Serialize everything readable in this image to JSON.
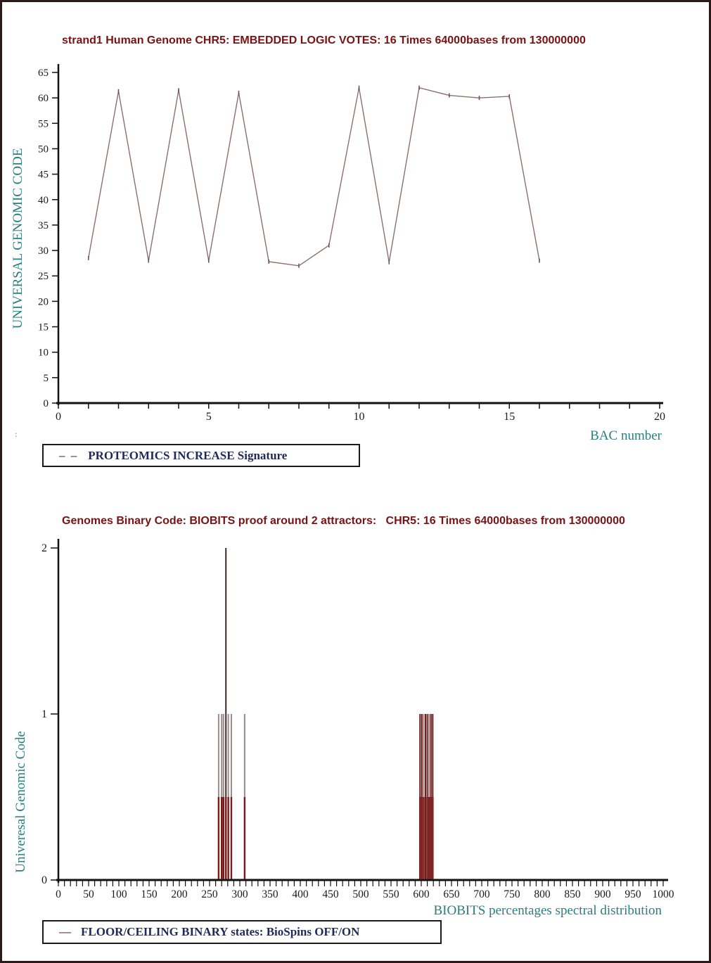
{
  "page": {
    "border_color": "#2a1a1a",
    "background": "#ffffff"
  },
  "colors": {
    "title": "#7a1214",
    "axis": "#111111",
    "tick_text": "#1a1a1a",
    "teal_label": "#2b7d7e",
    "legend_text": "#1f2a5a"
  },
  "artifacts": {
    "left_margin_mark": ":"
  },
  "chart_data": [
    {
      "type": "line",
      "title": "strand1 Human Genome CHR5: EMBEDDED LOGIC VOTES: 16 Times 64000bases from 130000000",
      "xlabel": "BAC number",
      "ylabel": "UNIVERSAL GENOMIC CODE",
      "xlim": [
        0,
        20
      ],
      "ylim": [
        0,
        65
      ],
      "x_major_ticks": [
        0,
        5,
        10,
        15,
        20
      ],
      "x_minor_step": 1,
      "y_major_step": 5,
      "grid": false,
      "legend_position": "below-left",
      "x": [
        1,
        2,
        3,
        4,
        5,
        6,
        7,
        8,
        9,
        10,
        11,
        12,
        13,
        14,
        15,
        16
      ],
      "y": [
        28.5,
        61.3,
        28,
        61.5,
        28,
        61,
        27.8,
        27,
        31,
        62,
        27.7,
        62,
        60.5,
        60,
        60.3,
        28
      ],
      "line_color": "#8a7070",
      "marker_color": "#6e5252",
      "legend_label": "PROTEOMICS INCREASE Signature",
      "legend_sample": "– –"
    },
    {
      "type": "bar",
      "title": "Genomes Binary Code: BIOBITS proof around 2 attractors:   CHR5: 16 Times 64000bases from 130000000",
      "xlabel": "BIOBITS percentages spectral distribution",
      "ylabel": "Univeresal Genomic Code",
      "xlim": [
        0,
        1000
      ],
      "ylim": [
        0,
        2
      ],
      "x_label_step": 50,
      "x_minor_step": 10,
      "y_ticks": [
        0,
        1,
        2
      ],
      "grid": false,
      "legend_position": "below-left",
      "floor_level": 0.5,
      "floor_color": "#7a1b1b",
      "spike_colors": {
        "mauve": "#9c8a8a",
        "dark": "#3f2b2b",
        "darkred": "#6e1a1a"
      },
      "spikes": [
        {
          "x": 265,
          "h": 1,
          "top": "mauve"
        },
        {
          "x": 270,
          "h": 1,
          "top": "mauve"
        },
        {
          "x": 273,
          "h": 1,
          "top": "mauve"
        },
        {
          "x": 277,
          "h": 2,
          "top": "dark"
        },
        {
          "x": 281,
          "h": 1,
          "top": "mauve"
        },
        {
          "x": 286,
          "h": 1,
          "top": "mauve"
        },
        {
          "x": 308,
          "h": 1,
          "top": "mauve"
        },
        {
          "x": 598,
          "h": 1,
          "top": "darkred"
        },
        {
          "x": 601,
          "h": 1,
          "top": "darkred"
        },
        {
          "x": 604,
          "h": 1,
          "top": "mauve"
        },
        {
          "x": 607,
          "h": 1,
          "top": "darkred"
        },
        {
          "x": 610,
          "h": 1,
          "top": "darkred"
        },
        {
          "x": 613,
          "h": 1,
          "top": "mauve"
        },
        {
          "x": 616,
          "h": 1,
          "top": "darkred"
        },
        {
          "x": 619,
          "h": 1,
          "top": "darkred"
        }
      ],
      "legend_label": "FLOOR/CEILING BINARY states: BioSpins OFF/ON",
      "legend_sample": "—"
    }
  ]
}
